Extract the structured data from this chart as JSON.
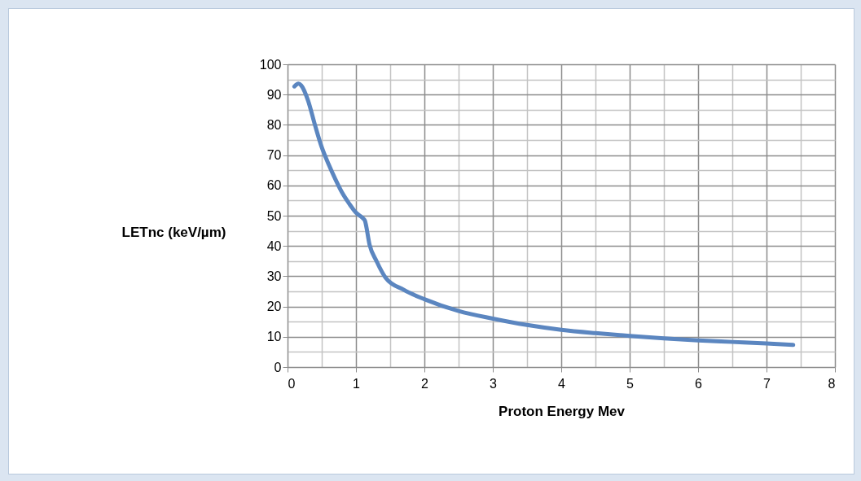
{
  "chart_data": {
    "type": "line",
    "xlabel": "Proton Energy Mev",
    "ylabel": "LETnc (keV/µm)",
    "x": [
      0.1,
      0.16,
      0.2,
      0.3,
      0.4,
      0.5,
      0.6,
      0.7,
      0.8,
      0.9,
      1.0,
      1.1,
      1.13,
      1.2,
      1.3,
      1.43,
      1.7,
      2.0,
      2.5,
      3.0,
      3.5,
      4.0,
      4.5,
      5.0,
      5.5,
      6.0,
      6.5,
      7.0,
      7.39
    ],
    "series": [
      {
        "color": "#5b86c0",
        "values": [
          92.7,
          93.6,
          93,
          88,
          80,
          72.6,
          67,
          62,
          57.5,
          54,
          51,
          49.2,
          48.4,
          40.3,
          35,
          29.6,
          25.5,
          22.4,
          18.5,
          16,
          13.9,
          12.3,
          11.2,
          10.3,
          9.5,
          8.8,
          8.3,
          7.8,
          7.3
        ]
      }
    ],
    "xlim": [
      0,
      8
    ],
    "ylim": [
      0,
      100
    ],
    "xticks": [
      0,
      {
        "value": 0.5,
        "label": null
      },
      1,
      {
        "value": 1.5,
        "label": null
      },
      2,
      {
        "value": 2.5,
        "label": null
      },
      3,
      {
        "value": 3.5,
        "label": null
      },
      4,
      {
        "value": 4.5,
        "label": null
      },
      5,
      {
        "value": 5.5,
        "label": null
      },
      6,
      {
        "value": 6.5,
        "label": null
      },
      7,
      {
        "value": 7.5,
        "label": null
      },
      8
    ],
    "yticks": [
      0,
      {
        "value": 5,
        "label": null
      },
      10,
      {
        "value": 15,
        "label": null
      },
      20,
      {
        "value": 25,
        "label": null
      },
      30,
      {
        "value": 35,
        "label": null
      },
      40,
      {
        "value": 45,
        "label": null
      },
      50,
      {
        "value": 55,
        "label": null
      },
      60,
      {
        "value": 65,
        "label": null
      },
      70,
      {
        "value": 75,
        "label": null
      },
      80,
      {
        "value": 85,
        "label": null
      },
      90,
      {
        "value": 95,
        "label": null
      },
      100
    ],
    "grid": true,
    "legend": false,
    "marker": "none",
    "line_style": "solid"
  }
}
